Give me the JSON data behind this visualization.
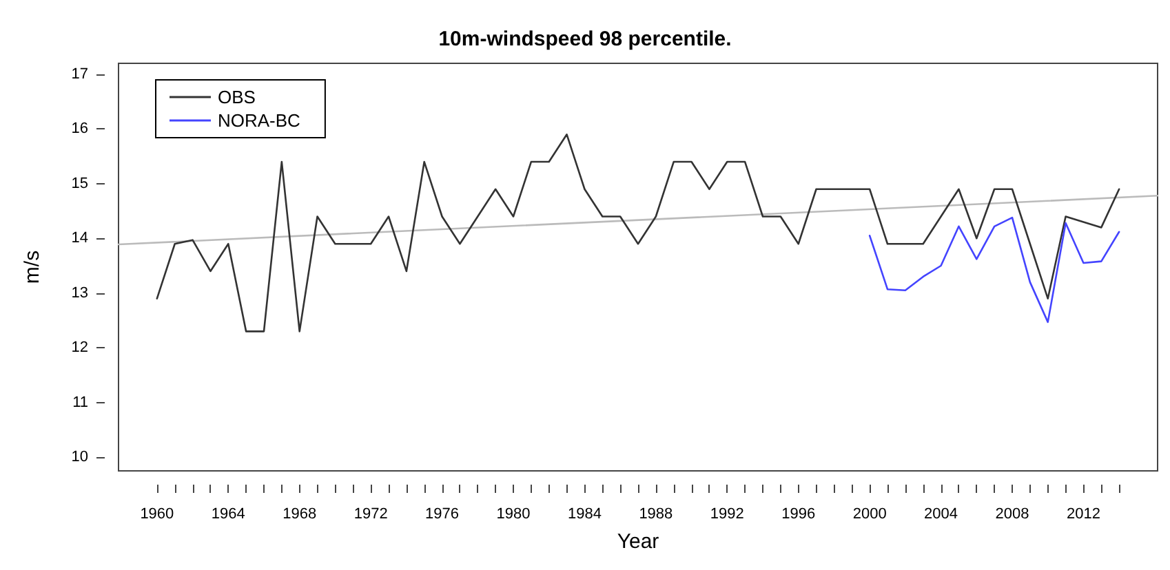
{
  "chart_data": {
    "type": "line",
    "title": "10m-windspeed 98 percentile.",
    "xlabel": "Year",
    "ylabel": "m/s",
    "xlim": [
      1957.84,
      2016.16
    ],
    "ylim": [
      9.75,
      17.2
    ],
    "xticks": [
      1960,
      {
        "value": 1961,
        "label": null
      },
      {
        "value": 1962,
        "label": null
      },
      {
        "value": 1963,
        "label": null
      },
      1964,
      {
        "value": 1965,
        "label": null
      },
      {
        "value": 1966,
        "label": null
      },
      {
        "value": 1967,
        "label": null
      },
      1968,
      {
        "value": 1969,
        "label": null
      },
      {
        "value": 1970,
        "label": null
      },
      {
        "value": 1971,
        "label": null
      },
      1972,
      {
        "value": 1973,
        "label": null
      },
      {
        "value": 1974,
        "label": null
      },
      {
        "value": 1975,
        "label": null
      },
      1976,
      {
        "value": 1977,
        "label": null
      },
      {
        "value": 1978,
        "label": null
      },
      {
        "value": 1979,
        "label": null
      },
      1980,
      {
        "value": 1981,
        "label": null
      },
      {
        "value": 1982,
        "label": null
      },
      {
        "value": 1983,
        "label": null
      },
      1984,
      {
        "value": 1985,
        "label": null
      },
      {
        "value": 1986,
        "label": null
      },
      {
        "value": 1987,
        "label": null
      },
      1988,
      {
        "value": 1989,
        "label": null
      },
      {
        "value": 1990,
        "label": null
      },
      {
        "value": 1991,
        "label": null
      },
      1992,
      {
        "value": 1993,
        "label": null
      },
      {
        "value": 1994,
        "label": null
      },
      {
        "value": 1995,
        "label": null
      },
      1996,
      {
        "value": 1997,
        "label": null
      },
      {
        "value": 1998,
        "label": null
      },
      {
        "value": 1999,
        "label": null
      },
      2000,
      {
        "value": 2001,
        "label": null
      },
      {
        "value": 2002,
        "label": null
      },
      {
        "value": 2003,
        "label": null
      },
      2004,
      {
        "value": 2005,
        "label": null
      },
      {
        "value": 2006,
        "label": null
      },
      {
        "value": 2007,
        "label": null
      },
      2008,
      {
        "value": 2009,
        "label": null
      },
      {
        "value": 2010,
        "label": null
      },
      {
        "value": 2011,
        "label": null
      },
      2012,
      {
        "value": 2013,
        "label": null
      },
      {
        "value": 2014,
        "label": null
      }
    ],
    "yticks": [
      10,
      11,
      12,
      13,
      14,
      15,
      16,
      17
    ],
    "grid": false,
    "legend": "top left",
    "marker": "none",
    "line_style": "solid",
    "series": [
      {
        "name": "OBS",
        "color": "#333333",
        "x": [
          1960,
          1961,
          1962,
          1963,
          1964,
          1965,
          1966,
          1967,
          1968,
          1969,
          1970,
          1971,
          1972,
          1973,
          1974,
          1975,
          1976,
          1977,
          1978,
          1979,
          1980,
          1981,
          1982,
          1983,
          1984,
          1985,
          1986,
          1987,
          1988,
          1989,
          1990,
          1991,
          1992,
          1993,
          1994,
          1995,
          1996,
          1997,
          1998,
          1999,
          2000,
          2001,
          2002,
          2003,
          2004,
          2005,
          2006,
          2007,
          2008,
          2009,
          2010,
          2011,
          2012,
          2013,
          2014
        ],
        "values": [
          12.9,
          13.9,
          13.97,
          13.4,
          13.9,
          12.3,
          12.3,
          15.4,
          12.3,
          14.4,
          13.9,
          13.9,
          13.9,
          14.4,
          13.4,
          15.4,
          14.4,
          13.9,
          14.4,
          14.9,
          14.4,
          15.4,
          15.4,
          15.9,
          14.9,
          14.4,
          14.4,
          13.9,
          14.4,
          15.4,
          15.4,
          14.9,
          15.4,
          15.4,
          14.4,
          14.4,
          13.9,
          14.9,
          14.9,
          14.9,
          14.9,
          13.9,
          13.9,
          13.9,
          14.4,
          14.9,
          14.0,
          14.9,
          14.9,
          13.9,
          12.9,
          14.4,
          14.3,
          14.2,
          14.9
        ]
      },
      {
        "name": "NORA-BC",
        "color": "#4444ff",
        "x": [
          2000,
          2001,
          2002,
          2003,
          2004,
          2005,
          2006,
          2007,
          2008,
          2009,
          2010,
          2011,
          2012,
          2013,
          2014
        ],
        "values": [
          14.05,
          13.07,
          13.05,
          13.3,
          13.5,
          14.22,
          13.62,
          14.22,
          14.38,
          13.2,
          12.47,
          14.28,
          13.55,
          13.58,
          14.12
        ]
      },
      {
        "type": "line",
        "color": "#bbbbbb",
        "x": [
          1957.84,
          2016.16
        ],
        "values": [
          13.89,
          14.78
        ]
      }
    ]
  }
}
